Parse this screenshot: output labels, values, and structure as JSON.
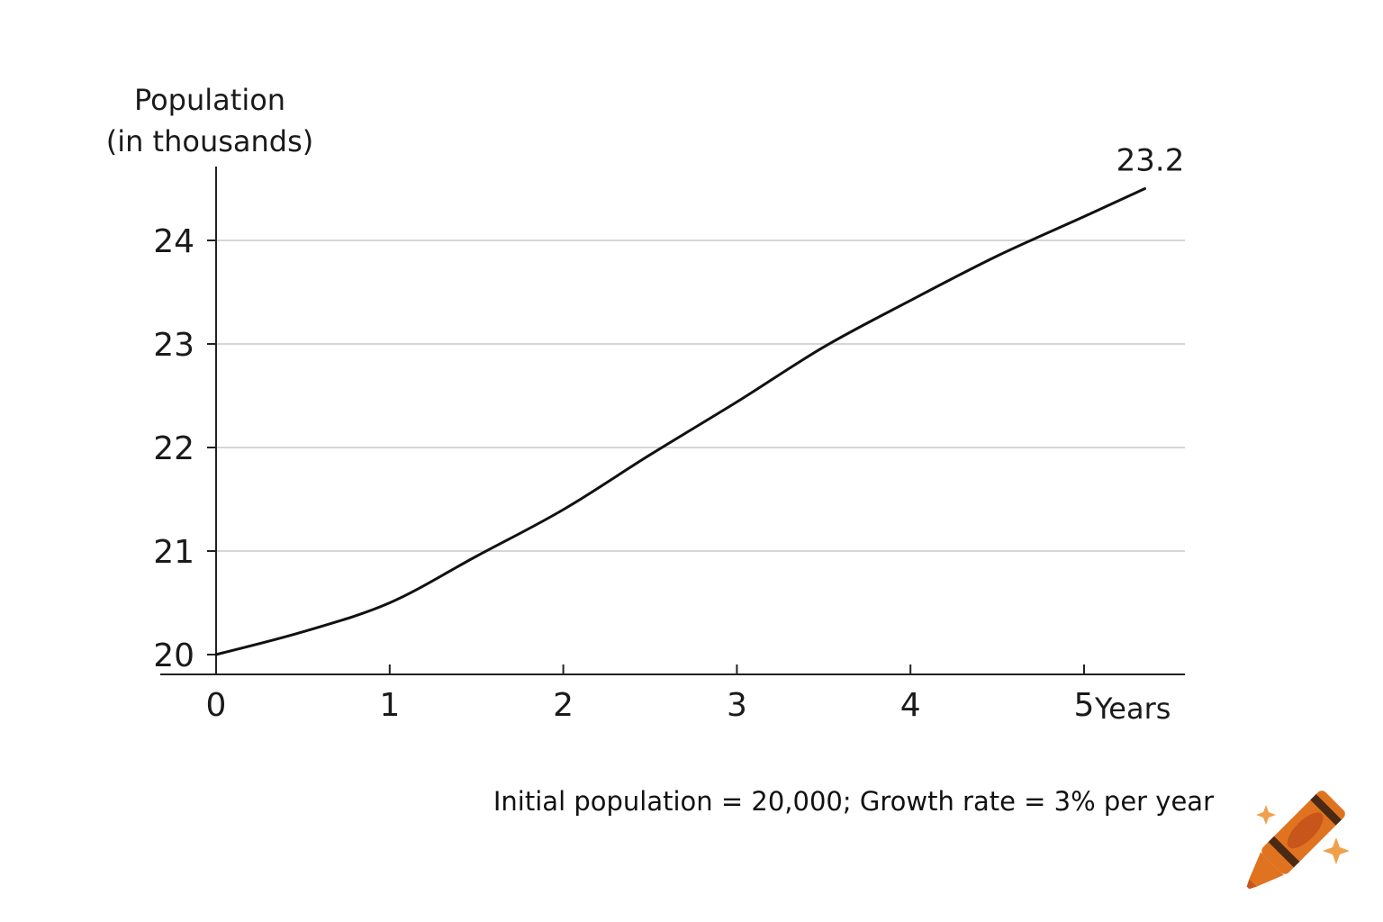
{
  "chart_data": {
    "type": "line",
    "ylabel_lines": [
      "Population",
      "(in thousands)"
    ],
    "xlabel": "Years",
    "xlim": [
      0,
      5.35
    ],
    "ylim": [
      20,
      24
    ],
    "x_ticks": [
      0,
      1,
      2,
      3,
      4,
      5
    ],
    "y_ticks": [
      20,
      21,
      22,
      23,
      24
    ],
    "grid": "horizontal",
    "series": [
      {
        "x": [
          0,
          0.5,
          1,
          1.5,
          2,
          2.5,
          3,
          3.5,
          4,
          4.5,
          5,
          5.35
        ],
        "y": [
          20,
          20.22,
          20.5,
          20.95,
          21.4,
          21.93,
          22.44,
          22.97,
          23.42,
          23.85,
          24.23,
          24.5
        ]
      }
    ],
    "annotation": {
      "text": "23.2"
    },
    "caption": "Initial population = 20,000; Growth rate = 3% per year"
  },
  "colors": {
    "line": "#111111",
    "grid": "#c8c8c8",
    "axis": "#222222",
    "logo_body": "#e0731f",
    "logo_dark": "#4a2a14",
    "logo_sparkle": "#f0a04b"
  }
}
